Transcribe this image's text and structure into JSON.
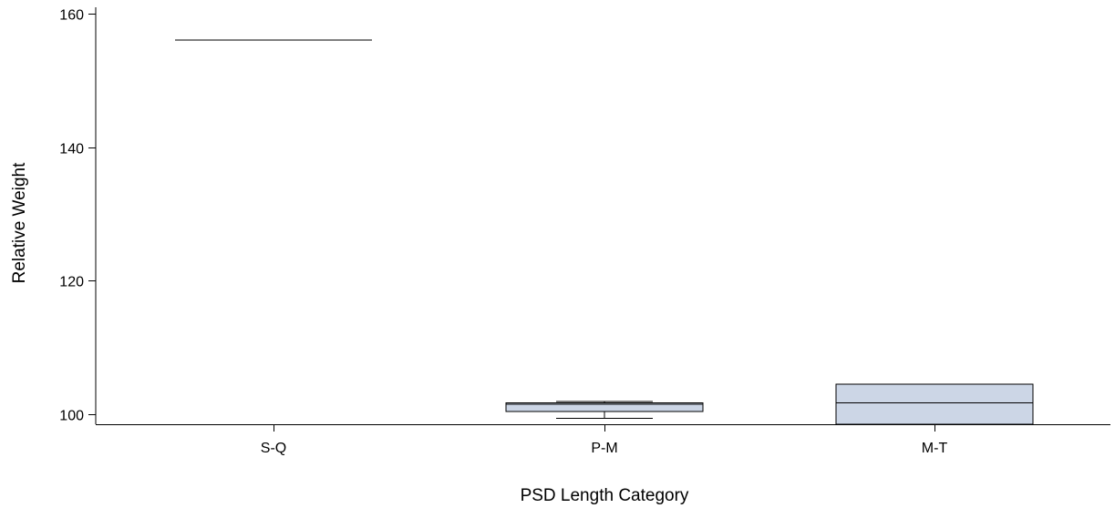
{
  "chart_data": {
    "type": "box",
    "xlabel": "PSD Length Category",
    "ylabel": "Relative Weight",
    "ylim": [
      98.5,
      161
    ],
    "yticks": [
      100,
      120,
      140,
      160
    ],
    "grid": false,
    "box_color": "#ccd6e6",
    "categories": [
      "S-Q",
      "P-M",
      "M-T"
    ],
    "boxes": [
      {
        "category": "S-Q",
        "whisker_low": 156.1,
        "q1": 156.1,
        "median": 156.1,
        "q3": 156.1,
        "whisker_high": 156.1
      },
      {
        "category": "P-M",
        "whisker_low": 99.4,
        "q1": 100.4,
        "median": 101.5,
        "q3": 101.7,
        "whisker_high": 101.9
      },
      {
        "category": "M-T",
        "whisker_low": 98.5,
        "q1": 98.5,
        "median": 101.7,
        "q3": 104.5,
        "whisker_high": 104.5
      }
    ]
  }
}
